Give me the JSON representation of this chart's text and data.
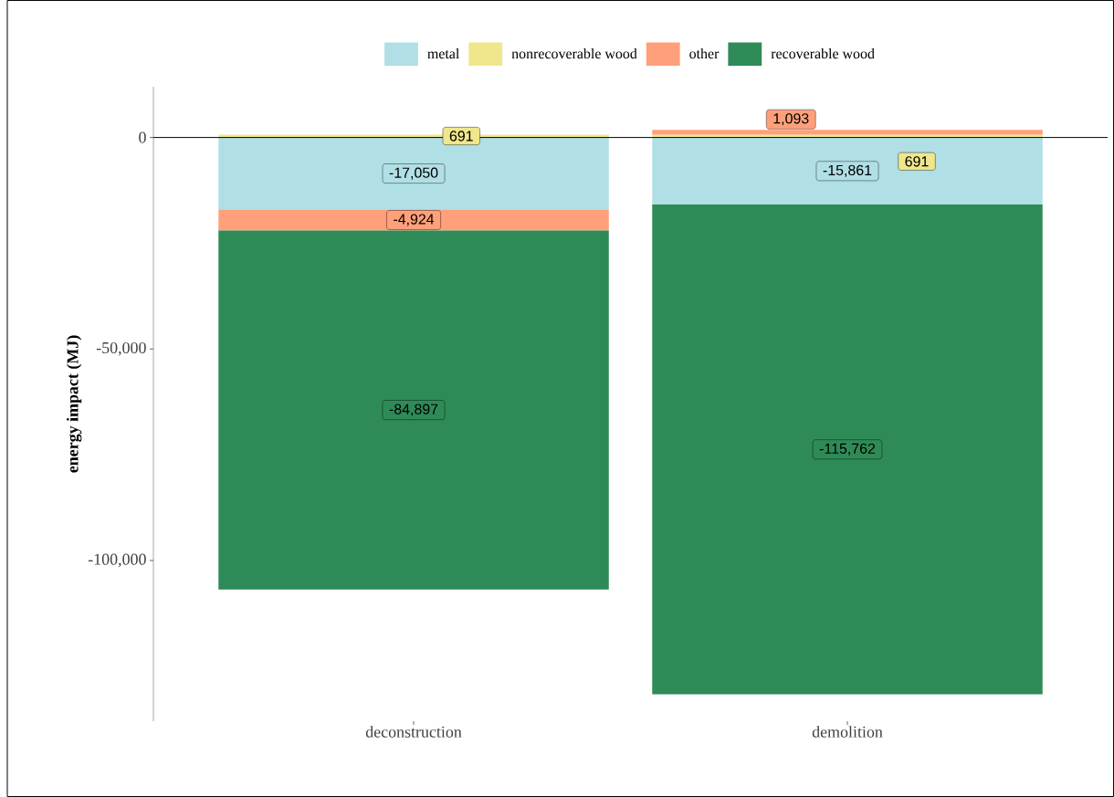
{
  "chart_data": {
    "type": "bar",
    "stacked": true,
    "ylabel": "energy impact (MJ)",
    "categories": [
      "deconstruction",
      "demolition"
    ],
    "series": [
      {
        "name": "metal",
        "color": "#b0dfe5",
        "values": [
          -17050,
          -15861
        ],
        "value_labels": [
          "-17,050",
          "-15,861"
        ]
      },
      {
        "name": "nonrecoverable wood",
        "color": "#f0e68c",
        "values": [
          691,
          691
        ],
        "value_labels": [
          "691",
          "691"
        ]
      },
      {
        "name": "other",
        "color": "#ffa07a",
        "values": [
          -4924,
          1093
        ],
        "value_labels": [
          "-4,924",
          "1,093"
        ]
      },
      {
        "name": "recoverable wood",
        "color": "#2e8b57",
        "values": [
          -84897,
          -115762
        ],
        "value_labels": [
          "-84,897",
          "-115,762"
        ]
      }
    ],
    "ylim": [
      -138000,
      12000
    ],
    "yticks": [
      0,
      {
        "value": -50000,
        "label": "-50,000"
      },
      {
        "value": -100000,
        "label": "-100,000"
      }
    ],
    "ref_lines": [
      {
        "axis": "y",
        "value": 0,
        "color": "#000000"
      }
    ],
    "legend": "top"
  }
}
